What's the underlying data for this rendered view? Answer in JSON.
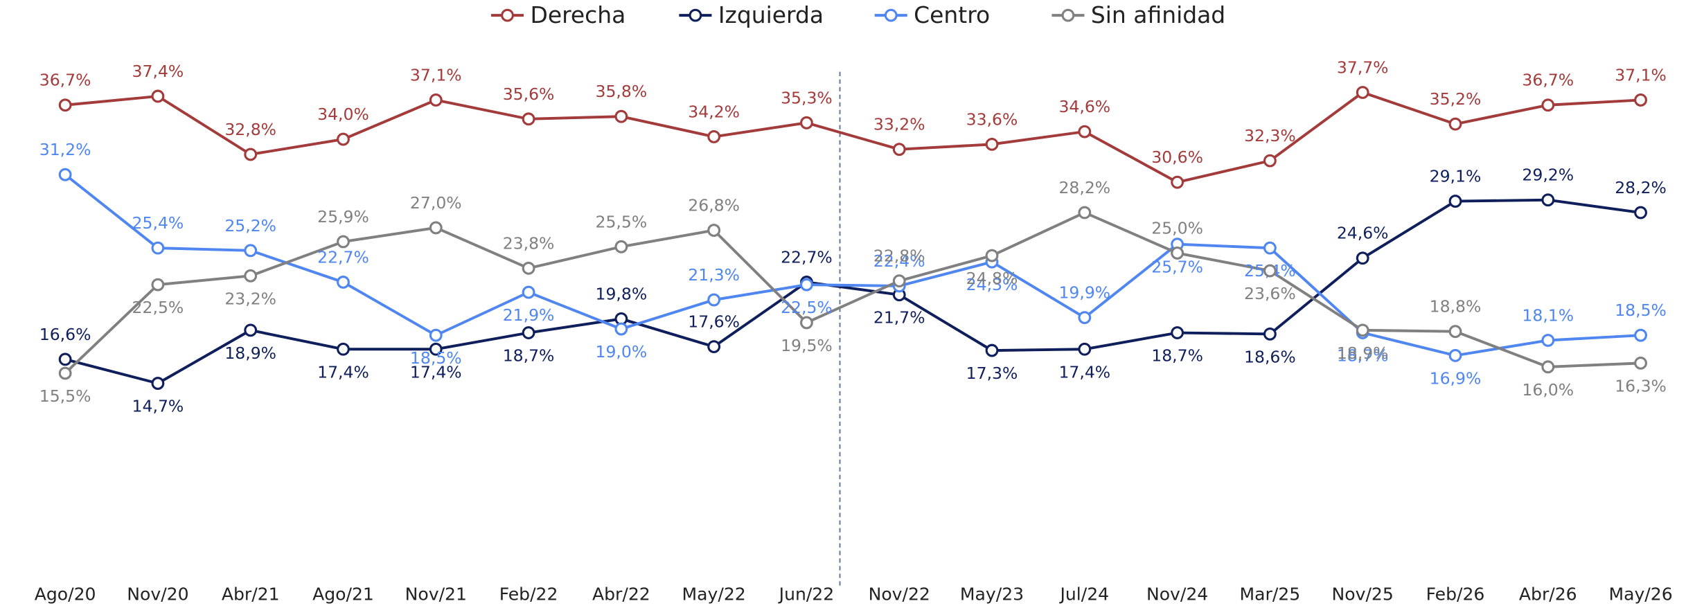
{
  "chart_data": {
    "type": "line",
    "categories": [
      "Ago/20",
      "Nov/20",
      "Abr/21",
      "Ago/21",
      "Nov/21",
      "Feb/22",
      "Abr/22",
      "May/22",
      "Jun/22",
      "Nov/22",
      "May/23",
      "Jul/24",
      "Nov/24",
      "Mar/25",
      "Nov/25",
      "Feb/26",
      "Abr/26",
      "May/26"
    ],
    "series": [
      {
        "name": "Derecha",
        "color": "#a33b3b",
        "values": [
          36.7,
          37.4,
          32.8,
          34.0,
          37.1,
          35.6,
          35.8,
          34.2,
          35.3,
          33.2,
          33.6,
          34.6,
          30.6,
          32.3,
          37.7,
          35.2,
          36.7,
          37.1
        ],
        "value_labels": [
          "36,7%",
          "37,4%",
          "32,8%",
          "34,0%",
          "37,1%",
          "35,6%",
          "35,8%",
          "34,2%",
          "35,3%",
          "33,2%",
          "33,6%",
          "34,6%",
          "30,6%",
          "32,3%",
          "37,7%",
          "35,2%",
          "36,7%",
          "37,1%"
        ]
      },
      {
        "name": "Izquierda",
        "color": "#0f1f5c",
        "values": [
          16.6,
          14.7,
          18.9,
          17.4,
          17.4,
          18.7,
          19.8,
          17.6,
          22.7,
          21.7,
          17.3,
          17.4,
          18.7,
          18.6,
          24.6,
          29.1,
          29.2,
          28.2
        ],
        "value_labels": [
          "16,6%",
          "14,7%",
          "18,9%",
          "17,4%",
          "17,4%",
          "18,7%",
          "19,8%",
          "17,6%",
          "22,7%",
          "21,7%",
          "17,3%",
          "17,4%",
          "18,7%",
          "18,6%",
          "24,6%",
          "29,1%",
          "29,2%",
          "28,2%"
        ]
      },
      {
        "name": "Centro",
        "color": "#4f86f0",
        "values": [
          31.2,
          25.4,
          25.2,
          22.7,
          18.5,
          21.9,
          19.0,
          21.3,
          22.5,
          22.4,
          24.3,
          19.9,
          25.7,
          25.4,
          18.7,
          16.9,
          18.1,
          18.5
        ],
        "value_labels": [
          "31,2%",
          "25,4%",
          "25,2%",
          "22,7%",
          "18,5%",
          "21,9%",
          "19,0%",
          "21,3%",
          "22,5%",
          "22,4%",
          "24,3%",
          "19,9%",
          "25,7%",
          "25,4%",
          "18,7%",
          "16,9%",
          "18,1%",
          "18,5%"
        ]
      },
      {
        "name": "Sin afinidad",
        "color": "#808080",
        "values": [
          15.5,
          22.5,
          23.2,
          25.9,
          27.0,
          23.8,
          25.5,
          26.8,
          19.5,
          22.8,
          24.8,
          28.2,
          25.0,
          23.6,
          18.9,
          18.8,
          16.0,
          16.3
        ],
        "value_labels": [
          "15,5%",
          "22,5%",
          "23,2%",
          "25,9%",
          "27,0%",
          "23,8%",
          "25,5%",
          "26,8%",
          "19,5%",
          "22,8%",
          "24,8%",
          "28,2%",
          "25,0%",
          "23,6%",
          "18,9%",
          "18,8%",
          "16,0%",
          "16,3%"
        ]
      }
    ],
    "ylim": [
      0,
      45
    ],
    "legend": "top"
  }
}
